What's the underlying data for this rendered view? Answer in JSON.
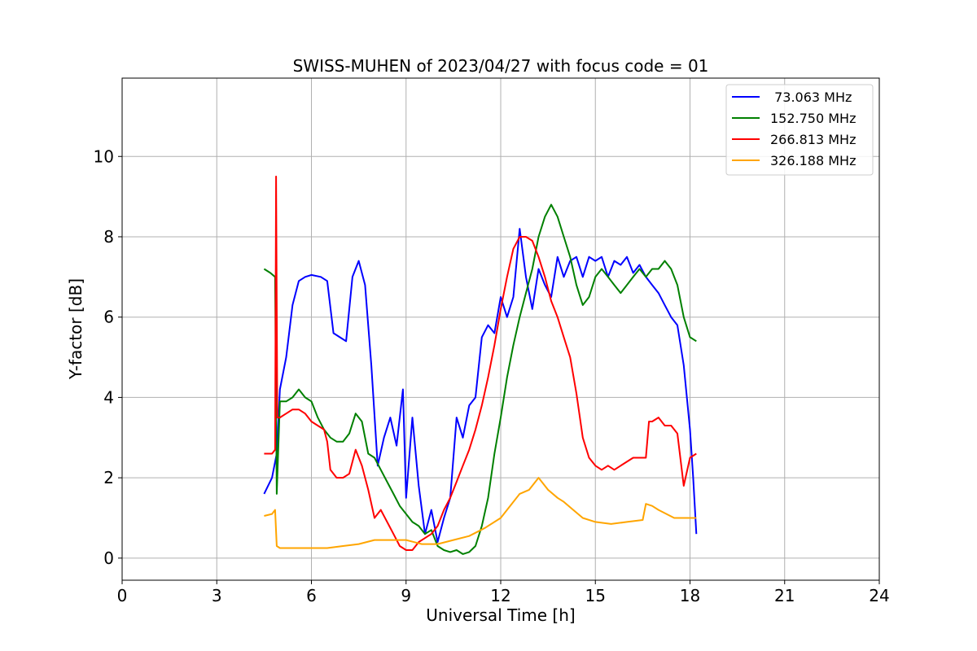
{
  "chart_data": {
    "type": "line",
    "title": "SWISS-MUHEN of 2023/04/27 with focus code = 01",
    "xlabel": "Universal Time [h]",
    "ylabel": "Y-factor [dB]",
    "xlim": [
      0,
      24
    ],
    "ylim": [
      -0.55,
      11.95
    ],
    "xticks": [
      0,
      3,
      6,
      9,
      12,
      15,
      18,
      21,
      24
    ],
    "yticks": [
      0,
      2,
      4,
      6,
      8,
      10
    ],
    "grid": true,
    "legend_position": "top-right",
    "series": [
      {
        "name": " 73.063 MHz",
        "color": "#0000ff",
        "x": [
          4.5,
          4.75,
          4.9,
          5.0,
          5.2,
          5.4,
          5.6,
          5.8,
          6.0,
          6.3,
          6.5,
          6.7,
          6.9,
          7.1,
          7.3,
          7.5,
          7.7,
          7.9,
          8.1,
          8.3,
          8.5,
          8.7,
          8.9,
          9.0,
          9.2,
          9.4,
          9.6,
          9.8,
          10.0,
          10.2,
          10.4,
          10.6,
          10.8,
          11.0,
          11.2,
          11.4,
          11.6,
          11.8,
          12.0,
          12.2,
          12.4,
          12.6,
          12.8,
          13.0,
          13.2,
          13.4,
          13.6,
          13.8,
          14.0,
          14.2,
          14.4,
          14.6,
          14.8,
          15.0,
          15.2,
          15.4,
          15.6,
          15.8,
          16.0,
          16.2,
          16.4,
          16.6,
          16.8,
          17.0,
          17.2,
          17.4,
          17.6,
          17.8,
          18.0,
          18.1,
          18.2
        ],
        "values": [
          1.6,
          2.0,
          2.6,
          4.2,
          5.0,
          6.3,
          6.9,
          7.0,
          7.05,
          7.0,
          6.9,
          5.6,
          5.5,
          5.4,
          7.0,
          7.4,
          6.8,
          4.8,
          2.3,
          3.0,
          3.5,
          2.8,
          4.2,
          1.5,
          3.5,
          1.8,
          0.6,
          1.2,
          0.4,
          1.0,
          1.5,
          3.5,
          3.0,
          3.8,
          4.0,
          5.5,
          5.8,
          5.6,
          6.5,
          6.0,
          6.5,
          8.2,
          7.0,
          6.2,
          7.2,
          6.8,
          6.5,
          7.5,
          7.0,
          7.4,
          7.5,
          7.0,
          7.5,
          7.4,
          7.5,
          7.0,
          7.4,
          7.3,
          7.5,
          7.1,
          7.3,
          7.0,
          6.8,
          6.6,
          6.3,
          6.0,
          5.8,
          4.8,
          3.2,
          2.0,
          0.6
        ]
      },
      {
        "name": "152.750 MHz",
        "color": "#008000",
        "x": [
          4.5,
          4.7,
          4.85,
          4.9,
          5.0,
          5.2,
          5.4,
          5.6,
          5.8,
          6.0,
          6.2,
          6.4,
          6.6,
          6.8,
          7.0,
          7.2,
          7.4,
          7.6,
          7.8,
          8.0,
          8.2,
          8.4,
          8.6,
          8.8,
          9.0,
          9.2,
          9.4,
          9.6,
          9.8,
          10.0,
          10.2,
          10.4,
          10.6,
          10.8,
          11.0,
          11.2,
          11.4,
          11.6,
          11.8,
          12.0,
          12.2,
          12.4,
          12.6,
          12.8,
          13.0,
          13.2,
          13.4,
          13.6,
          13.8,
          14.0,
          14.2,
          14.4,
          14.6,
          14.8,
          15.0,
          15.2,
          15.4,
          15.6,
          15.8,
          16.0,
          16.2,
          16.4,
          16.6,
          16.8,
          17.0,
          17.2,
          17.4,
          17.6,
          17.8,
          18.0,
          18.2
        ],
        "values": [
          7.2,
          7.1,
          7.0,
          1.6,
          3.9,
          3.9,
          4.0,
          4.2,
          4.0,
          3.9,
          3.5,
          3.2,
          3.0,
          2.9,
          2.9,
          3.1,
          3.6,
          3.4,
          2.6,
          2.5,
          2.2,
          1.9,
          1.6,
          1.3,
          1.1,
          0.9,
          0.8,
          0.6,
          0.7,
          0.3,
          0.2,
          0.15,
          0.2,
          0.1,
          0.15,
          0.3,
          0.8,
          1.5,
          2.6,
          3.5,
          4.5,
          5.3,
          6.0,
          6.6,
          7.2,
          8.0,
          8.5,
          8.8,
          8.5,
          8.0,
          7.5,
          6.8,
          6.3,
          6.5,
          7.0,
          7.2,
          7.0,
          6.8,
          6.6,
          6.8,
          7.0,
          7.2,
          7.0,
          7.2,
          7.2,
          7.4,
          7.2,
          6.8,
          6.0,
          5.5,
          5.4
        ]
      },
      {
        "name": "266.813 MHz",
        "color": "#ff0000",
        "x": [
          4.5,
          4.75,
          4.85,
          4.88,
          4.92,
          5.0,
          5.2,
          5.4,
          5.6,
          5.8,
          6.0,
          6.2,
          6.4,
          6.5,
          6.6,
          6.8,
          7.0,
          7.2,
          7.4,
          7.6,
          7.8,
          8.0,
          8.2,
          8.4,
          8.6,
          8.8,
          9.0,
          9.2,
          9.4,
          9.6,
          9.8,
          10.0,
          10.2,
          10.4,
          10.6,
          10.8,
          11.0,
          11.2,
          11.4,
          11.6,
          11.8,
          12.0,
          12.2,
          12.4,
          12.6,
          12.8,
          13.0,
          13.2,
          13.4,
          13.6,
          13.8,
          14.0,
          14.2,
          14.4,
          14.6,
          14.8,
          15.0,
          15.2,
          15.4,
          15.6,
          15.8,
          16.0,
          16.2,
          16.4,
          16.6,
          16.7,
          16.8,
          17.0,
          17.2,
          17.4,
          17.6,
          17.8,
          18.0,
          18.2
        ],
        "values": [
          2.6,
          2.6,
          2.7,
          9.5,
          3.5,
          3.5,
          3.6,
          3.7,
          3.7,
          3.6,
          3.4,
          3.3,
          3.2,
          2.9,
          2.2,
          2.0,
          2.0,
          2.1,
          2.7,
          2.3,
          1.7,
          1.0,
          1.2,
          0.9,
          0.6,
          0.3,
          0.2,
          0.2,
          0.4,
          0.5,
          0.6,
          0.8,
          1.2,
          1.5,
          1.9,
          2.3,
          2.7,
          3.2,
          3.8,
          4.5,
          5.3,
          6.2,
          7.0,
          7.7,
          8.0,
          8.0,
          7.9,
          7.5,
          7.0,
          6.4,
          6.0,
          5.5,
          5.0,
          4.1,
          3.0,
          2.5,
          2.3,
          2.2,
          2.3,
          2.2,
          2.3,
          2.4,
          2.5,
          2.5,
          2.5,
          3.4,
          3.4,
          3.5,
          3.3,
          3.3,
          3.1,
          1.8,
          2.5,
          2.6
        ]
      },
      {
        "name": "326.188 MHz",
        "color": "#ffa500",
        "x": [
          4.5,
          4.75,
          4.85,
          4.9,
          5.0,
          5.5,
          6.0,
          6.5,
          7.0,
          7.5,
          8.0,
          8.5,
          9.0,
          9.5,
          10.0,
          10.5,
          11.0,
          11.5,
          12.0,
          12.3,
          12.6,
          12.9,
          13.2,
          13.5,
          13.8,
          14.0,
          14.3,
          14.6,
          15.0,
          15.5,
          16.0,
          16.5,
          16.6,
          16.8,
          17.0,
          17.5,
          18.0,
          18.2
        ],
        "values": [
          1.05,
          1.1,
          1.2,
          0.3,
          0.25,
          0.25,
          0.25,
          0.25,
          0.3,
          0.35,
          0.45,
          0.45,
          0.45,
          0.35,
          0.35,
          0.45,
          0.55,
          0.75,
          1.0,
          1.3,
          1.6,
          1.7,
          2.0,
          1.7,
          1.5,
          1.4,
          1.2,
          1.0,
          0.9,
          0.85,
          0.9,
          0.95,
          1.35,
          1.3,
          1.2,
          1.0,
          1.0,
          1.0
        ]
      }
    ]
  }
}
